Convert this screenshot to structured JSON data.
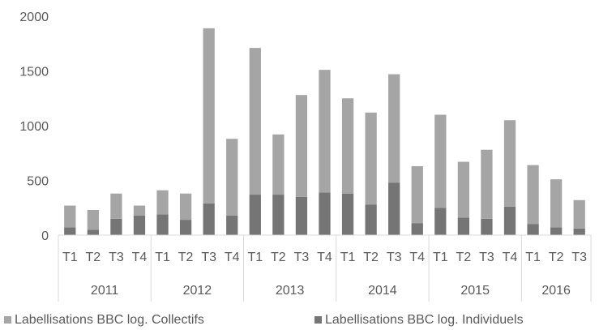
{
  "chart_data": {
    "type": "bar",
    "stacked": true,
    "title": "",
    "xlabel": "",
    "ylabel": "",
    "ylim": [
      0,
      2000
    ],
    "yticks": [
      0,
      500,
      1000,
      1500,
      2000
    ],
    "grid": false,
    "legend_position": "bottom",
    "categories": [
      {
        "quarter": "T1",
        "year": "2011"
      },
      {
        "quarter": "T2",
        "year": "2011"
      },
      {
        "quarter": "T3",
        "year": "2011"
      },
      {
        "quarter": "T4",
        "year": "2011"
      },
      {
        "quarter": "T1",
        "year": "2012"
      },
      {
        "quarter": "T2",
        "year": "2012"
      },
      {
        "quarter": "T3",
        "year": "2012"
      },
      {
        "quarter": "T4",
        "year": "2012"
      },
      {
        "quarter": "T1",
        "year": "2013"
      },
      {
        "quarter": "T2",
        "year": "2013"
      },
      {
        "quarter": "T3",
        "year": "2013"
      },
      {
        "quarter": "T4",
        "year": "2013"
      },
      {
        "quarter": "T1",
        "year": "2014"
      },
      {
        "quarter": "T2",
        "year": "2014"
      },
      {
        "quarter": "T3",
        "year": "2014"
      },
      {
        "quarter": "T4",
        "year": "2014"
      },
      {
        "quarter": "T1",
        "year": "2015"
      },
      {
        "quarter": "T2",
        "year": "2015"
      },
      {
        "quarter": "T3",
        "year": "2015"
      },
      {
        "quarter": "T4",
        "year": "2015"
      },
      {
        "quarter": "T1",
        "year": "2016"
      },
      {
        "quarter": "T2",
        "year": "2016"
      },
      {
        "quarter": "T3",
        "year": "2016"
      }
    ],
    "years": [
      "2011",
      "2012",
      "2013",
      "2014",
      "2015",
      "2016"
    ],
    "series": [
      {
        "name": "Labellisations BBC log. Individuels",
        "color": "#757575",
        "values": [
          70,
          50,
          150,
          180,
          190,
          140,
          290,
          180,
          370,
          370,
          350,
          390,
          380,
          280,
          480,
          110,
          250,
          160,
          150,
          260,
          100,
          70,
          60
        ]
      },
      {
        "name": "Labellisations BBC log. Collectifs",
        "color": "#a5a5a5",
        "values": [
          200,
          180,
          230,
          90,
          220,
          240,
          1600,
          700,
          1340,
          550,
          930,
          1120,
          870,
          840,
          990,
          520,
          850,
          510,
          630,
          790,
          540,
          440,
          260
        ]
      }
    ],
    "legend_order": [
      "Labellisations BBC log. Collectifs",
      "Labellisations BBC log. Individuels"
    ]
  }
}
